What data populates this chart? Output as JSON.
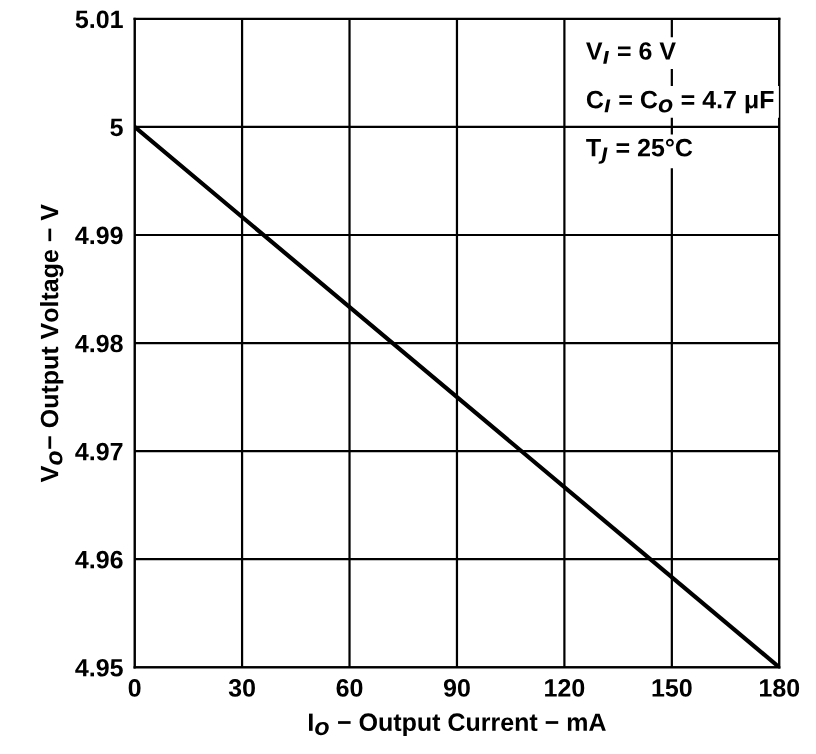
{
  "chart_data": {
    "type": "line",
    "xlabel": "I$_{O}$ − Output Current − mA",
    "ylabel": "V$_{O}$− Output Voltage − V",
    "x": [
      0,
      180
    ],
    "series": [
      {
        "color": "#000000",
        "values": [
          5,
          4.95
        ]
      }
    ],
    "xlim": [
      0,
      180
    ],
    "xticks": [
      0,
      30,
      60,
      90,
      120,
      150,
      180
    ],
    "ylim": [
      4.95,
      5.01
    ],
    "yticks": [
      4.95,
      4.96,
      4.97,
      4.98,
      4.99,
      5,
      5.01
    ],
    "grid": true,
    "annotations": [
      "V$_{I}$ = 6 V",
      "C$_{I}$ = C$_{O}$ = 4.7 μF",
      "T$_{J}$ = 25°C"
    ]
  }
}
